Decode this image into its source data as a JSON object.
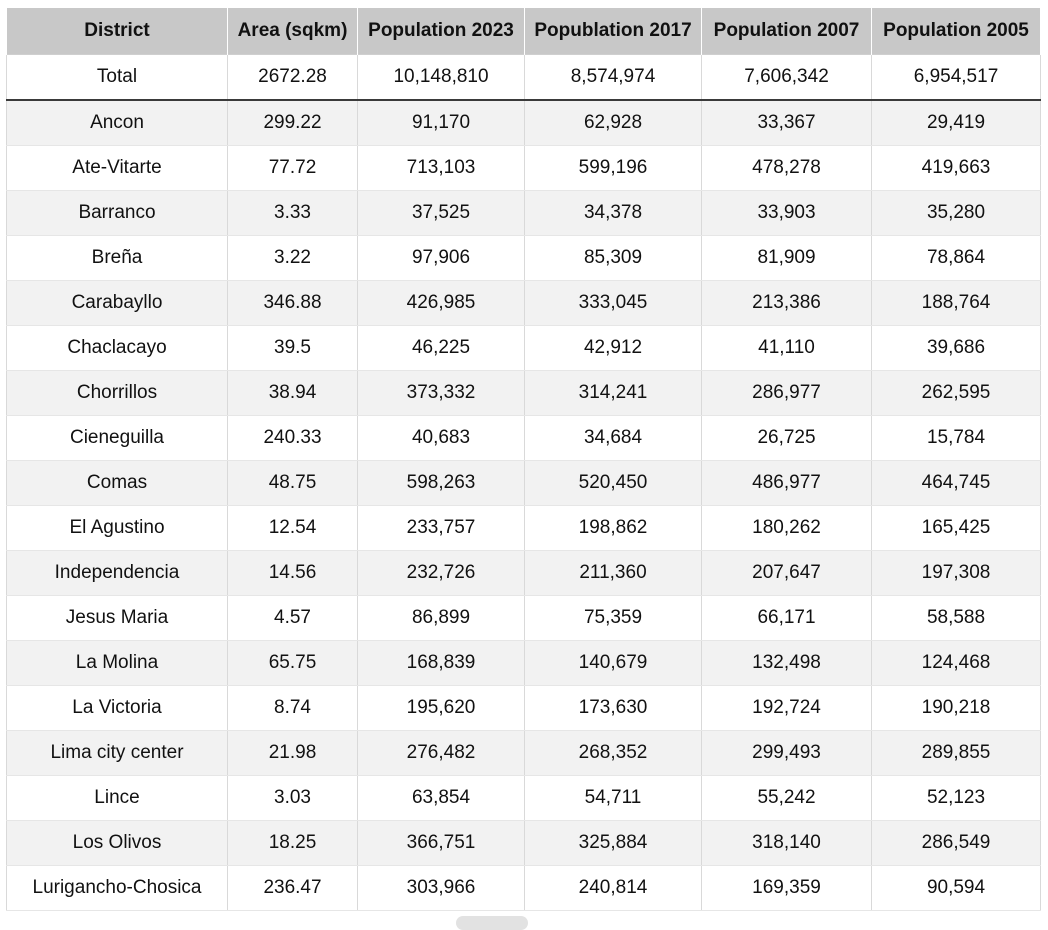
{
  "table": {
    "headers": [
      "District",
      "Area (sqkm)",
      "Population 2023",
      "Popublation 2017",
      "Population 2007",
      "Population 2005"
    ],
    "total": [
      "Total",
      "2672.28",
      "10,148,810",
      "8,574,974",
      "7,606,342",
      "6,954,517"
    ],
    "rows": [
      [
        "Ancon",
        "299.22",
        "91,170",
        "62,928",
        "33,367",
        "29,419"
      ],
      [
        "Ate-Vitarte",
        "77.72",
        "713,103",
        "599,196",
        "478,278",
        "419,663"
      ],
      [
        "Barranco",
        "3.33",
        "37,525",
        "34,378",
        "33,903",
        "35,280"
      ],
      [
        "Breña",
        "3.22",
        "97,906",
        "85,309",
        "81,909",
        "78,864"
      ],
      [
        "Carabayllo",
        "346.88",
        "426,985",
        "333,045",
        "213,386",
        "188,764"
      ],
      [
        "Chaclacayo",
        "39.5",
        "46,225",
        "42,912",
        "41,110",
        "39,686"
      ],
      [
        "Chorrillos",
        "38.94",
        "373,332",
        "314,241",
        "286,977",
        "262,595"
      ],
      [
        "Cieneguilla",
        "240.33",
        "40,683",
        "34,684",
        "26,725",
        "15,784"
      ],
      [
        "Comas",
        "48.75",
        "598,263",
        "520,450",
        "486,977",
        "464,745"
      ],
      [
        "El Agustino",
        "12.54",
        "233,757",
        "198,862",
        "180,262",
        "165,425"
      ],
      [
        "Independencia",
        "14.56",
        "232,726",
        "211,360",
        "207,647",
        "197,308"
      ],
      [
        "Jesus Maria",
        "4.57",
        "86,899",
        "75,359",
        "66,171",
        "58,588"
      ],
      [
        "La Molina",
        "65.75",
        "168,839",
        "140,679",
        "132,498",
        "124,468"
      ],
      [
        "La Victoria",
        "8.74",
        "195,620",
        "173,630",
        "192,724",
        "190,218"
      ],
      [
        "Lima city center",
        "21.98",
        "276,482",
        "268,352",
        "299,493",
        "289,855"
      ],
      [
        "Lince",
        "3.03",
        "63,854",
        "54,711",
        "55,242",
        "52,123"
      ],
      [
        "Los Olivos",
        "18.25",
        "366,751",
        "325,884",
        "318,140",
        "286,549"
      ],
      [
        "Lurigancho-Chosica",
        "236.47",
        "303,966",
        "240,814",
        "169,359",
        "90,594"
      ]
    ]
  }
}
